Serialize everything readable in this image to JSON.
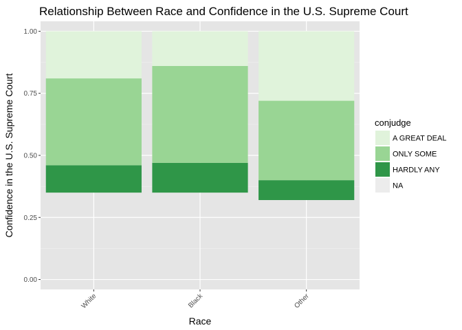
{
  "chart_data": {
    "type": "bar",
    "stacked": true,
    "title": "Relationship Between Race and Confidence in the U.S. Supreme Court",
    "xlabel": "Race",
    "ylabel": "Confidence in the U.S. Supreme Court",
    "categories": [
      "White",
      "Black",
      "Other"
    ],
    "ylim": [
      -0.04,
      1.04
    ],
    "yticks": [
      0.0,
      0.25,
      0.5,
      0.75,
      1.0
    ],
    "ytick_labels": [
      "0.00",
      "0.25",
      "0.50",
      "0.75",
      "1.00"
    ],
    "grid": true,
    "legend": {
      "title": "conjudge",
      "position": "right"
    },
    "series": [
      {
        "name": "A GREAT DEAL",
        "color": "#e0f3db",
        "values": [
          0.19,
          0.14,
          0.28
        ]
      },
      {
        "name": "ONLY SOME",
        "color": "#99d594",
        "values": [
          0.35,
          0.39,
          0.32
        ]
      },
      {
        "name": "HARDLY ANY",
        "color": "#2f9648",
        "values": [
          0.11,
          0.12,
          0.08
        ]
      },
      {
        "name": "NA",
        "color": "#ececec",
        "values": [
          0.35,
          0.35,
          0.32
        ]
      }
    ]
  },
  "colors": {
    "panel": "#e5e5e5",
    "grid_major": "#ffffff",
    "grid_minor": "#f0f0f0"
  }
}
